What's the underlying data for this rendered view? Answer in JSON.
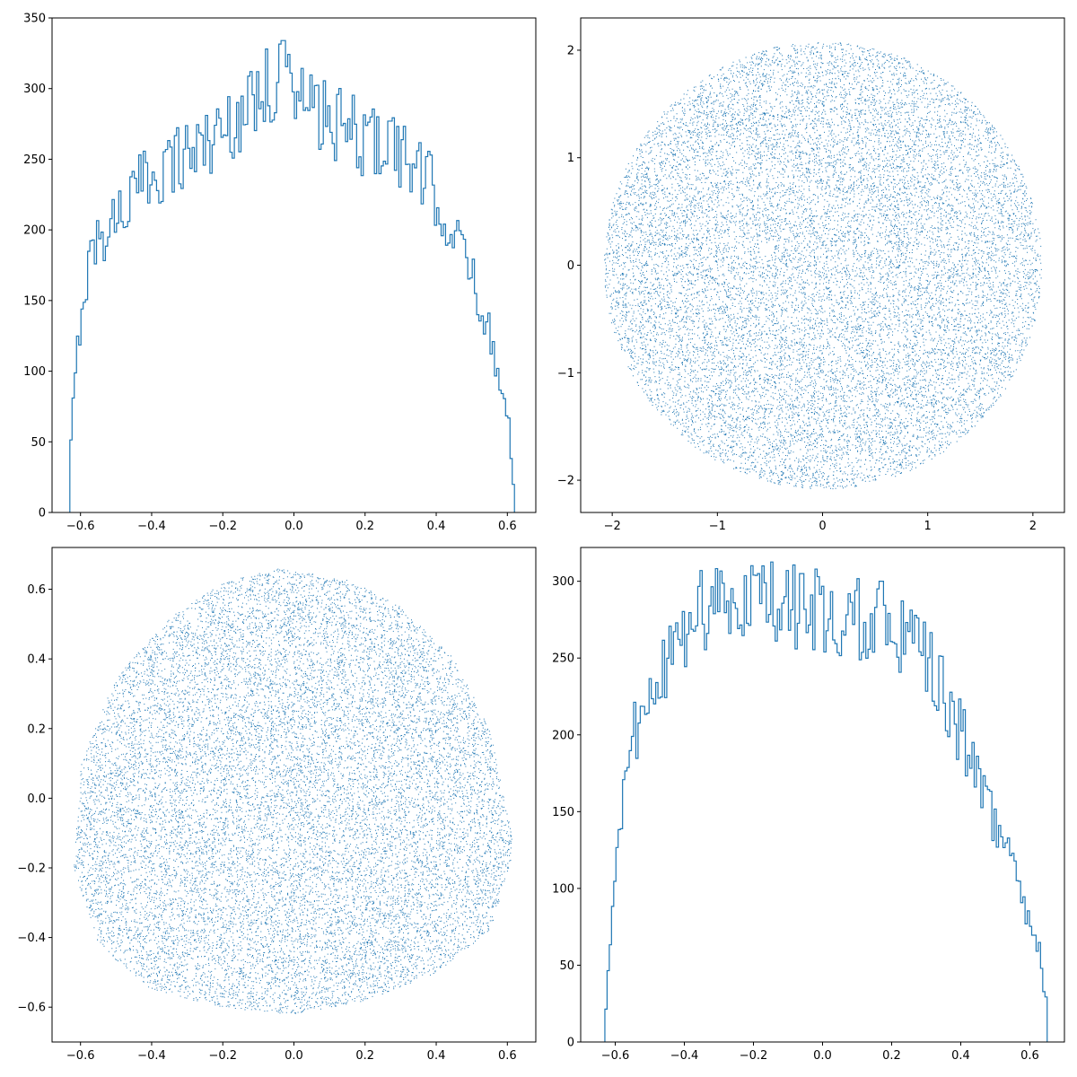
{
  "colors": {
    "series": "#1f77b4",
    "axes": "#000000",
    "background": "#ffffff"
  },
  "chart_data": [
    {
      "type": "histogram",
      "histtype": "step",
      "xlim": [
        -0.68,
        0.68
      ],
      "ylim": [
        0,
        350
      ],
      "xticks": [
        -0.6,
        -0.4,
        -0.2,
        0.0,
        0.2,
        0.4,
        0.6
      ],
      "xtick_labels": [
        "−0.6",
        "−0.4",
        "−0.2",
        "0.0",
        "0.2",
        "0.4",
        "0.6"
      ],
      "yticks": [
        0,
        50,
        100,
        150,
        200,
        250,
        300,
        350
      ],
      "ytick_labels": [
        "0",
        "50",
        "100",
        "150",
        "200",
        "250",
        "300",
        "350"
      ],
      "bin_range": [
        -0.63,
        0.62
      ],
      "profile": [
        [
          -0.63,
          24
        ],
        [
          -0.625,
          60
        ],
        [
          -0.6,
          140
        ],
        [
          -0.57,
          185
        ],
        [
          -0.5,
          210
        ],
        [
          -0.4,
          240
        ],
        [
          -0.3,
          255
        ],
        [
          -0.2,
          270
        ],
        [
          -0.1,
          295
        ],
        [
          -0.03,
          305
        ],
        [
          0.05,
          285
        ],
        [
          0.1,
          275
        ],
        [
          0.2,
          265
        ],
        [
          0.3,
          255
        ],
        [
          0.4,
          225
        ],
        [
          0.45,
          195
        ],
        [
          0.5,
          170
        ],
        [
          0.55,
          125
        ],
        [
          0.58,
          95
        ],
        [
          0.6,
          75
        ],
        [
          0.61,
          45
        ],
        [
          0.62,
          16
        ]
      ],
      "peaks": [
        [
          -0.075,
          328
        ],
        [
          -0.03,
          334
        ],
        [
          -0.1,
          312
        ],
        [
          0.27,
          277
        ]
      ],
      "grid": false
    },
    {
      "type": "scatter",
      "marker": "pixel",
      "shape": "disc",
      "center": [
        0,
        0
      ],
      "radius": 2.08,
      "xlim": [
        -2.3,
        2.3
      ],
      "ylim": [
        -2.3,
        2.3
      ],
      "xticks": [
        -2,
        -1,
        0,
        1,
        2
      ],
      "xtick_labels": [
        "−2",
        "−1",
        "0",
        "1",
        "2"
      ],
      "yticks": [
        -2,
        -1,
        0,
        1,
        2
      ],
      "ytick_labels": [
        "−2",
        "−1",
        "0",
        "1",
        "2"
      ],
      "grid": false
    },
    {
      "type": "scatter",
      "marker": "pixel",
      "shape": "rounded-triangle",
      "outline": [
        [
          -0.05,
          0.66
        ],
        [
          0.15,
          0.63
        ],
        [
          0.3,
          0.55
        ],
        [
          0.45,
          0.4
        ],
        [
          0.55,
          0.2
        ],
        [
          0.62,
          -0.15
        ],
        [
          0.55,
          -0.38
        ],
        [
          0.4,
          -0.5
        ],
        [
          0.2,
          -0.58
        ],
        [
          0.0,
          -0.62
        ],
        [
          -0.2,
          -0.6
        ],
        [
          -0.4,
          -0.55
        ],
        [
          -0.55,
          -0.42
        ],
        [
          -0.62,
          -0.2
        ],
        [
          -0.6,
          0.1
        ],
        [
          -0.5,
          0.35
        ],
        [
          -0.35,
          0.52
        ],
        [
          -0.2,
          0.62
        ]
      ],
      "xlim": [
        -0.68,
        0.68
      ],
      "ylim": [
        -0.7,
        0.72
      ],
      "xticks": [
        -0.6,
        -0.4,
        -0.2,
        0.0,
        0.2,
        0.4,
        0.6
      ],
      "xtick_labels": [
        "−0.6",
        "−0.4",
        "−0.2",
        "0.0",
        "0.2",
        "0.4",
        "0.6"
      ],
      "yticks": [
        -0.6,
        -0.4,
        -0.2,
        0.0,
        0.2,
        0.4,
        0.6
      ],
      "ytick_labels": [
        "−0.6",
        "−0.4",
        "−0.2",
        "0.0",
        "0.2",
        "0.4",
        "0.6"
      ],
      "grid": false
    },
    {
      "type": "histogram",
      "histtype": "step",
      "xlim": [
        -0.7,
        0.7
      ],
      "ylim": [
        0,
        322
      ],
      "xticks": [
        -0.6,
        -0.4,
        -0.2,
        0.0,
        0.2,
        0.4,
        0.6
      ],
      "xtick_labels": [
        "−0.6",
        "−0.4",
        "−0.2",
        "0.0",
        "0.2",
        "0.4",
        "0.6"
      ],
      "yticks": [
        0,
        50,
        100,
        150,
        200,
        250,
        300
      ],
      "ytick_labels": [
        "0",
        "50",
        "100",
        "150",
        "200",
        "250",
        "300"
      ],
      "bin_range": [
        -0.63,
        0.65
      ],
      "profile": [
        [
          -0.63,
          12
        ],
        [
          -0.62,
          45
        ],
        [
          -0.6,
          100
        ],
        [
          -0.58,
          150
        ],
        [
          -0.55,
          200
        ],
        [
          -0.5,
          220
        ],
        [
          -0.45,
          245
        ],
        [
          -0.4,
          270
        ],
        [
          -0.3,
          285
        ],
        [
          -0.2,
          290
        ],
        [
          -0.1,
          285
        ],
        [
          0.0,
          280
        ],
        [
          0.1,
          275
        ],
        [
          0.2,
          270
        ],
        [
          0.3,
          250
        ],
        [
          0.4,
          200
        ],
        [
          0.45,
          175
        ],
        [
          0.5,
          140
        ],
        [
          0.55,
          120
        ],
        [
          0.6,
          80
        ],
        [
          0.63,
          60
        ],
        [
          0.65,
          20
        ]
      ],
      "peaks": [
        [
          -0.17,
          310
        ],
        [
          -0.2,
          304
        ],
        [
          -0.35,
          307
        ],
        [
          -0.06,
          305
        ],
        [
          0.17,
          300
        ]
      ],
      "grid": false
    }
  ]
}
